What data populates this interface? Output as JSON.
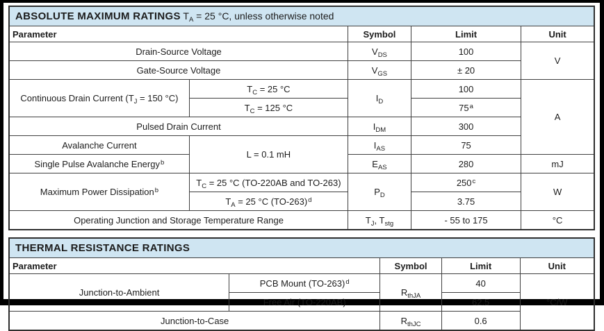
{
  "colors": {
    "title_bar_bg": "#cfe5f2",
    "table_border": "#3f3f3f",
    "outer_frame": "#000000",
    "text": "#1c1c1c"
  },
  "t1": {
    "title": [
      {
        "b": "ABSOLUTE MAXIMUM RATINGS"
      },
      {
        "t": " T"
      },
      {
        "sub": "A"
      },
      {
        "t": " = 25 °C, unless otherwise noted"
      }
    ],
    "headers": {
      "parameter": "Parameter",
      "symbol": "Symbol",
      "limit": "Limit",
      "unit": "Unit"
    },
    "rows": [
      {
        "param": [
          {
            "t": "Drain-Source Voltage"
          }
        ],
        "symbol": [
          {
            "t": "V"
          },
          {
            "sub": "DS"
          }
        ],
        "limit": [
          {
            "t": "100"
          }
        ],
        "unit": [
          {
            "t": "V"
          }
        ]
      },
      {
        "param": [
          {
            "t": "Gate-Source Voltage"
          }
        ],
        "symbol": [
          {
            "t": "V"
          },
          {
            "sub": "GS"
          }
        ],
        "limit": [
          {
            "t": "± 20"
          }
        ]
      },
      {
        "param": [
          {
            "t": "Continuous Drain Current (T"
          },
          {
            "sub": "J"
          },
          {
            "t": " = 150 °C)"
          }
        ],
        "condition": [
          {
            "t": "T"
          },
          {
            "sub": "C"
          },
          {
            "t": " = 25 °C"
          }
        ],
        "symbol": [
          {
            "t": "I"
          },
          {
            "sub": "D"
          }
        ],
        "limit": [
          {
            "t": "100"
          }
        ],
        "unit": [
          {
            "t": "A"
          }
        ]
      },
      {
        "condition": [
          {
            "t": "T"
          },
          {
            "sub": "C"
          },
          {
            "t": " = 125 °C"
          }
        ],
        "limit": [
          {
            "t": "75"
          },
          {
            "sup": "a"
          }
        ]
      },
      {
        "param": [
          {
            "t": "Pulsed Drain Current"
          }
        ],
        "symbol": [
          {
            "t": "I"
          },
          {
            "sub": "DM"
          }
        ],
        "limit": [
          {
            "t": "300"
          }
        ]
      },
      {
        "param": [
          {
            "t": "Avalanche Current"
          }
        ],
        "condition": [
          {
            "t": "L = 0.1 mH"
          }
        ],
        "symbol": [
          {
            "t": "I"
          },
          {
            "sub": "AS"
          }
        ],
        "limit": [
          {
            "t": "75"
          }
        ]
      },
      {
        "param": [
          {
            "t": "Single Pulse Avalanche Energy"
          },
          {
            "sup": "b"
          }
        ],
        "symbol": [
          {
            "t": "E"
          },
          {
            "sub": "AS"
          }
        ],
        "limit": [
          {
            "t": "280"
          }
        ],
        "unit": [
          {
            "t": "mJ"
          }
        ]
      },
      {
        "param": [
          {
            "t": "Maximum Power Dissipation"
          },
          {
            "sup": "b"
          }
        ],
        "condition": [
          {
            "t": "T"
          },
          {
            "sub": "C"
          },
          {
            "t": " = 25 °C (TO-220AB and TO-263)"
          }
        ],
        "symbol": [
          {
            "t": "P"
          },
          {
            "sub": "D"
          }
        ],
        "limit": [
          {
            "t": "250"
          },
          {
            "sup": "c"
          }
        ],
        "unit": [
          {
            "t": "W"
          }
        ]
      },
      {
        "condition": [
          {
            "t": "T"
          },
          {
            "sub": "A"
          },
          {
            "t": " = 25 °C (TO-263)"
          },
          {
            "sup": "d"
          }
        ],
        "limit": [
          {
            "t": "3.75"
          }
        ]
      },
      {
        "param": [
          {
            "t": "Operating Junction and Storage Temperature Range"
          }
        ],
        "symbol": [
          {
            "t": "T"
          },
          {
            "sub": "J"
          },
          {
            "t": ", T"
          },
          {
            "sub": "stg"
          }
        ],
        "limit": [
          {
            "t": "- 55 to 175"
          }
        ],
        "unit": [
          {
            "t": "°C"
          }
        ]
      }
    ]
  },
  "t2": {
    "title": [
      {
        "b": "THERMAL RESISTANCE RATINGS"
      }
    ],
    "headers": {
      "parameter": "Parameter",
      "symbol": "Symbol",
      "limit": "Limit",
      "unit": "Unit"
    },
    "rows": [
      {
        "param": [
          {
            "t": "Junction-to-Ambient"
          }
        ],
        "condition": [
          {
            "t": "PCB Mount (TO-263)"
          },
          {
            "sup": "d"
          }
        ],
        "symbol": [
          {
            "t": "R"
          },
          {
            "sub": "thJA"
          }
        ],
        "limit": [
          {
            "t": "40"
          }
        ],
        "unit": [
          {
            "t": "°C/W"
          }
        ]
      },
      {
        "condition": [
          {
            "t": "Free Air (TO-220AB)"
          }
        ],
        "limit": [
          {
            "t": "62.5"
          }
        ]
      },
      {
        "param": [
          {
            "t": "Junction-to-Case"
          }
        ],
        "symbol": [
          {
            "t": "R"
          },
          {
            "sub": "thJC"
          }
        ],
        "limit": [
          {
            "t": "0.6"
          }
        ]
      }
    ]
  }
}
